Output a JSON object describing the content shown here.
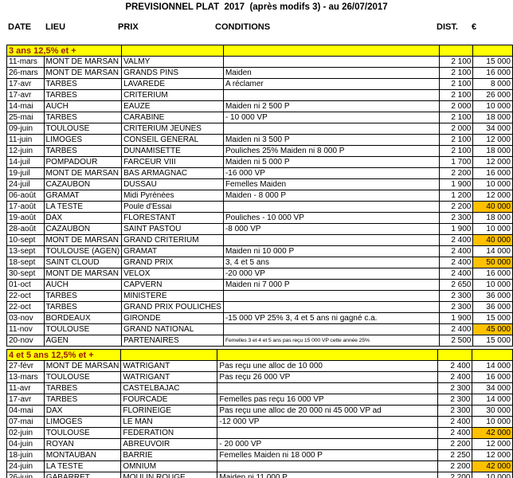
{
  "title": "PREVISIONNEL PLAT  2017  (après modifs 3) - au 26/07/2017",
  "columns": [
    "DATE",
    "LIEU",
    "PRIX",
    "CONDITIONS",
    "DIST.",
    "€"
  ],
  "colors": {
    "section_header_bg": "#FFFF00",
    "section_header_text": "#9B1A00",
    "highlight_bg": "#FFC000",
    "grid_line": "#000000"
  },
  "sections": [
    {
      "header": "3 ans 12,5% et +",
      "rows": [
        {
          "date": "11-mars",
          "lieu": "MONT DE MARSAN",
          "prix": "VALMY",
          "conditions": "",
          "dist": "2 100",
          "euro": "15 000",
          "highlight": false
        },
        {
          "date": "26-mars",
          "lieu": "MONT DE MARSAN",
          "prix": "GRANDS PINS",
          "conditions": "Maiden",
          "dist": "2 100",
          "euro": "16 000",
          "highlight": false
        },
        {
          "date": "17-avr",
          "lieu": "TARBES",
          "prix": "LAVAREDE",
          "conditions": "A réclamer",
          "dist": "2 100",
          "euro": "8 000",
          "highlight": false
        },
        {
          "date": "17-avr",
          "lieu": "TARBES",
          "prix": "CRITERIUM",
          "conditions": "",
          "dist": "2 100",
          "euro": "26 000",
          "highlight": false
        },
        {
          "date": "14-mai",
          "lieu": "AUCH",
          "prix": "EAUZE",
          "conditions": "Maiden ni 2 500 P",
          "dist": "2 000",
          "euro": "10 000",
          "highlight": false
        },
        {
          "date": "25-mai",
          "lieu": "TARBES",
          "prix": "CARABINE",
          "conditions": "- 10 000 VP",
          "dist": "2 100",
          "euro": "18 000",
          "highlight": false
        },
        {
          "date": "09-juin",
          "lieu": "TOULOUSE",
          "prix": "CRITERIUM JEUNES",
          "conditions": "",
          "dist": "2 000",
          "euro": "34 000",
          "highlight": false
        },
        {
          "date": "11-juin",
          "lieu": "LIMOGES",
          "prix": "CONSEIL GENERAL",
          "conditions": "Maiden ni 3 500 P",
          "dist": "2 100",
          "euro": "12 000",
          "highlight": false
        },
        {
          "date": "12-juin",
          "lieu": "TARBES",
          "prix": "DUNAMISETTE",
          "conditions": "Pouliches 25% Maiden ni 8 000 P",
          "dist": "2 100",
          "euro": "18 000",
          "highlight": false
        },
        {
          "date": "14-juil",
          "lieu": "POMPADOUR",
          "prix": "FARCEUR VIII",
          "conditions": "Maiden ni 5 000 P",
          "dist": "1 700",
          "euro": "12 000",
          "highlight": false
        },
        {
          "date": "19-juil",
          "lieu": "MONT DE MARSAN",
          "prix": "BAS ARMAGNAC",
          "conditions": "-16 000 VP",
          "dist": "2 200",
          "euro": "16 000",
          "highlight": false
        },
        {
          "date": "24-juil",
          "lieu": "CAZAUBON",
          "prix": "DUSSAU",
          "conditions": "Femelles Maiden",
          "dist": "1 900",
          "euro": "10 000",
          "highlight": false
        },
        {
          "date": "06-août",
          "lieu": "GRAMAT",
          "prix": "Midi Pyrénées",
          "conditions": "Maiden - 8 000 P",
          "dist": "1 200",
          "euro": "12 000",
          "highlight": false
        },
        {
          "date": "17-août",
          "lieu": "LA TESTE",
          "prix": "Poule d'Essai",
          "conditions": "",
          "dist": "2 200",
          "euro": "40 000",
          "highlight": true
        },
        {
          "date": "19-août",
          "lieu": "DAX",
          "prix": "FLORESTANT",
          "conditions": "Pouliches - 10 000 VP",
          "dist": "2 300",
          "euro": "18 000",
          "highlight": false
        },
        {
          "date": "28-août",
          "lieu": "CAZAUBON",
          "prix": "SAINT PASTOU",
          "conditions": "-8 000 VP",
          "dist": "1 900",
          "euro": "10 000",
          "highlight": false
        },
        {
          "date": "10-sept",
          "lieu": "MONT DE MARSAN",
          "prix": "GRAND CRITERIUM",
          "conditions": "",
          "dist": "2 400",
          "euro": "40 000",
          "highlight": true
        },
        {
          "date": "13-sept",
          "lieu": "TOULOUSE (AGEN)",
          "prix": "GRAMAT",
          "conditions": "Maiden ni 10 000 P",
          "dist": "2 400",
          "euro": "14 000",
          "highlight": false
        },
        {
          "date": "18-sept",
          "lieu": "SAINT CLOUD",
          "prix": "GRAND PRIX",
          "conditions": "3, 4 et 5 ans",
          "dist": "2 400",
          "euro": "50 000",
          "highlight": true
        },
        {
          "date": "30-sept",
          "lieu": "MONT DE MARSAN",
          "prix": "VELOX",
          "conditions": "-20 000 VP",
          "dist": "2 400",
          "euro": "16 000",
          "highlight": false
        },
        {
          "date": "01-oct",
          "lieu": "AUCH",
          "prix": "CAPVERN",
          "conditions": "Maiden ni 7 000 P",
          "dist": "2 650",
          "euro": "10 000",
          "highlight": false
        },
        {
          "date": "22-oct",
          "lieu": "TARBES",
          "prix": "MINISTERE",
          "conditions": "",
          "dist": "2 300",
          "euro": "36 000",
          "highlight": false
        },
        {
          "date": "22-oct",
          "lieu": "TARBES",
          "prix": "GRAND PRIX POULICHES",
          "conditions": "",
          "dist": "2 300",
          "euro": "36 000",
          "highlight": false
        },
        {
          "date": "03-nov",
          "lieu": "BORDEAUX",
          "prix": "GIRONDE",
          "conditions": "-15 000 VP 25% 3, 4 et 5 ans ni gagné c.a.",
          "dist": "1 900",
          "euro": "15 000",
          "highlight": false
        },
        {
          "date": "11-nov",
          "lieu": "TOULOUSE",
          "prix": "GRAND NATIONAL",
          "conditions": "",
          "dist": "2 400",
          "euro": "45 000",
          "highlight": true
        },
        {
          "date": "20-nov",
          "lieu": "AGEN",
          "prix": "PARTENAIRES",
          "conditions": "Femelles 3 et 4 et 5 ans pas reçu 15 000 VP cette année 25%",
          "dist": "2 500",
          "euro": "15 000",
          "highlight": false,
          "small_conditions": true
        }
      ]
    },
    {
      "header": "4 et 5 ans 12,5% et +",
      "rows": [
        {
          "date": "27-févr",
          "lieu": "MONT DE MARSAN",
          "prix": "WATRIGANT",
          "conditions": "Pas reçu une alloc de 10 000",
          "dist": "2 400",
          "euro": "14 000",
          "highlight": false
        },
        {
          "date": "13-mars",
          "lieu": "TOULOUSE",
          "prix": "WATRIGANT",
          "conditions": "Pas reçu 26 000 VP",
          "dist": "2 400",
          "euro": "16 000",
          "highlight": false
        },
        {
          "date": "11-avr",
          "lieu": "TARBES",
          "prix": "CASTELBAJAC",
          "conditions": "",
          "dist": "2 300",
          "euro": "34 000",
          "highlight": false
        },
        {
          "date": "17-avr",
          "lieu": "TARBES",
          "prix": "FOURCADE",
          "conditions": "Femelles pas reçu 16 000 VP",
          "dist": "2 300",
          "euro": "14 000",
          "highlight": false
        },
        {
          "date": "04-mai",
          "lieu": "DAX",
          "prix": "FLORINEIGE",
          "conditions": "Pas reçu une alloc de 20 000 ni 45 000 VP ad",
          "dist": "2 300",
          "euro": "30 000",
          "highlight": false
        },
        {
          "date": "07-mai",
          "lieu": "LIMOGES",
          "prix": "LE MAN",
          "conditions": "-12 000 VP",
          "dist": "2 400",
          "euro": "10 000",
          "highlight": false
        },
        {
          "date": "02-juin",
          "lieu": "TOULOUSE",
          "prix": "FEDERATION",
          "conditions": "",
          "dist": "2 400",
          "euro": "42 000",
          "highlight": true
        },
        {
          "date": "04-juin",
          "lieu": "ROYAN",
          "prix": "ABREUVOIR",
          "conditions": "- 20 000 VP",
          "dist": "2 200",
          "euro": "12 000",
          "highlight": false
        },
        {
          "date": "18-juin",
          "lieu": "MONTAUBAN",
          "prix": "BARRIE",
          "conditions": "Femelles Maiden ni 18 000 P",
          "dist": "2 250",
          "euro": "12 000",
          "highlight": false
        },
        {
          "date": "24-juin",
          "lieu": "LA TESTE",
          "prix": "OMNIUM",
          "conditions": "",
          "dist": "2 200",
          "euro": "42 000",
          "highlight": true
        },
        {
          "date": "26-juin",
          "lieu": "GABARRET",
          "prix": "MOULIN ROUGE",
          "conditions": "Maiden ni 11 000 P",
          "dist": "2 200",
          "euro": "10 000",
          "highlight": false
        }
      ]
    }
  ]
}
